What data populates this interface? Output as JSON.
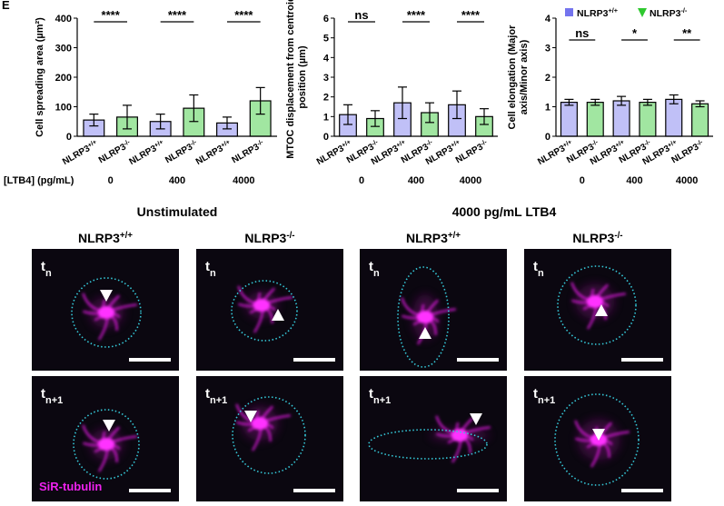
{
  "panel_label": "E",
  "group_label": "[LTB4] (pg/mL)",
  "chart_data": [
    {
      "type": "bar",
      "ylabel": "Cell spreading area (µm²)",
      "ylim": [
        0,
        400
      ],
      "yticks": [
        0,
        100,
        200,
        300,
        400
      ],
      "groups": [
        "0",
        "400",
        "4000"
      ],
      "categories": [
        {
          "gene": "NLRP3",
          "sup": "+/+"
        },
        {
          "gene": "NLRP3",
          "sup": "-/-"
        },
        {
          "gene": "NLRP3",
          "sup": "+/+"
        },
        {
          "gene": "NLRP3",
          "sup": "-/-"
        },
        {
          "gene": "NLRP3",
          "sup": "+/+"
        },
        {
          "gene": "NLRP3",
          "sup": "-/-"
        }
      ],
      "values": [
        55,
        65,
        50,
        95,
        45,
        120
      ],
      "errors": [
        20,
        40,
        25,
        45,
        20,
        45
      ],
      "colors": [
        "#7474ee",
        "#2ec82e",
        "#7474ee",
        "#2ec82e",
        "#7474ee",
        "#2ec82e"
      ],
      "significance": [
        "****",
        "****",
        "****"
      ]
    },
    {
      "type": "bar",
      "ylabel": "MTOC displacement from centroid position (µm)",
      "ylim": [
        0,
        6
      ],
      "yticks": [
        0,
        1,
        2,
        3,
        4,
        5,
        6
      ],
      "groups": [
        "0",
        "400",
        "4000"
      ],
      "categories": [
        {
          "gene": "NLRP3",
          "sup": "+/+"
        },
        {
          "gene": "NLRP3",
          "sup": "-/-"
        },
        {
          "gene": "NLRP3",
          "sup": "+/+"
        },
        {
          "gene": "NLRP3",
          "sup": "-/-"
        },
        {
          "gene": "NLRP3",
          "sup": "+/+"
        },
        {
          "gene": "NLRP3",
          "sup": "-/-"
        }
      ],
      "values": [
        1.1,
        0.9,
        1.7,
        1.2,
        1.6,
        1.0
      ],
      "errors": [
        0.5,
        0.4,
        0.8,
        0.5,
        0.7,
        0.4
      ],
      "colors": [
        "#7474ee",
        "#2ec82e",
        "#7474ee",
        "#2ec82e",
        "#7474ee",
        "#2ec82e"
      ],
      "significance": [
        "ns",
        "****",
        "****"
      ]
    },
    {
      "type": "bar",
      "ylabel": "Cell elongation (Major axis/Minor axis)",
      "ylim": [
        0,
        4
      ],
      "yticks": [
        0,
        1,
        2,
        3,
        4
      ],
      "groups": [
        "0",
        "400",
        "4000"
      ],
      "categories": [
        {
          "gene": "NLRP3",
          "sup": "+/+"
        },
        {
          "gene": "NLRP3",
          "sup": "-/-"
        },
        {
          "gene": "NLRP3",
          "sup": "+/+"
        },
        {
          "gene": "NLRP3",
          "sup": "-/-"
        },
        {
          "gene": "NLRP3",
          "sup": "+/+"
        },
        {
          "gene": "NLRP3",
          "sup": "-/-"
        }
      ],
      "values": [
        1.15,
        1.15,
        1.2,
        1.15,
        1.25,
        1.1
      ],
      "errors": [
        0.1,
        0.1,
        0.15,
        0.1,
        0.15,
        0.1
      ],
      "colors": [
        "#7474ee",
        "#2ec82e",
        "#7474ee",
        "#2ec82e",
        "#7474ee",
        "#2ec82e"
      ],
      "significance": [
        "ns",
        "*",
        "**"
      ],
      "legend": [
        {
          "gene": "NLRP3",
          "sup": "+/+",
          "color": "#7474ee",
          "marker": "square"
        },
        {
          "gene": "NLRP3",
          "sup": "-/-",
          "color": "#2ec82e",
          "marker": "triangle"
        }
      ]
    }
  ],
  "images": {
    "conditions": [
      "Unstimulated",
      "4000 pg/mL LTB4"
    ],
    "columns": [
      {
        "gene": "NLRP3",
        "sup": "+/+"
      },
      {
        "gene": "NLRP3",
        "sup": "-/-"
      },
      {
        "gene": "NLRP3",
        "sup": "+/+"
      },
      {
        "gene": "NLRP3",
        "sup": "-/-"
      }
    ],
    "time_labels": [
      {
        "base": "t",
        "sub": "n"
      },
      {
        "base": "t",
        "sub": "n+1"
      }
    ],
    "stain": "SiR-tubulin"
  }
}
